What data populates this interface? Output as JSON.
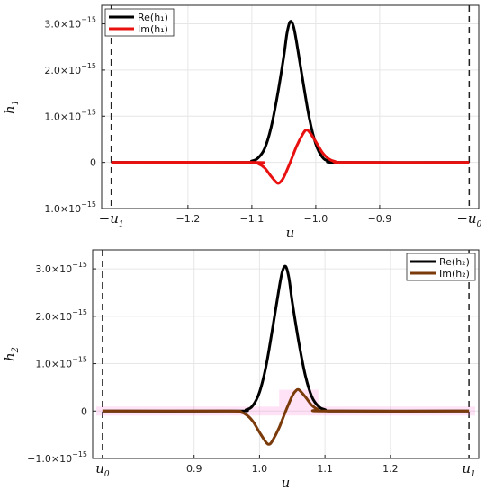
{
  "chart_data": [
    {
      "type": "line",
      "xlabel": "u",
      "ylabel": "h",
      "ylabel_sub": "1",
      "xlim": [
        -1.335,
        -0.745
      ],
      "ylim": [
        -1e-15,
        3.4e-15
      ],
      "grid": true,
      "legend_position": "top-left",
      "x_ticks": [
        {
          "value": -1.2,
          "label": "−1.2"
        },
        {
          "value": -1.1,
          "label": "−1.1"
        },
        {
          "value": -1.0,
          "label": "−1.0"
        },
        {
          "value": -0.9,
          "label": "−0.9"
        }
      ],
      "x_special_ticks": [
        {
          "value": -1.32,
          "label": "−u",
          "sub": "1"
        },
        {
          "value": -0.76,
          "label": "−u",
          "sub": "0"
        }
      ],
      "y_ticks": [
        {
          "value": -1e-15,
          "mant": "−1.0×10",
          "exp": "−15"
        },
        {
          "value": 0,
          "mant": "0",
          "exp": ""
        },
        {
          "value": 1e-15,
          "mant": "1.0×10",
          "exp": "−15"
        },
        {
          "value": 2e-15,
          "mant": "2.0×10",
          "exp": "−15"
        },
        {
          "value": 3e-15,
          "mant": "3.0×10",
          "exp": "−15"
        }
      ],
      "vlines": [
        -1.32,
        -0.76
      ],
      "series": [
        {
          "name": "Re(h₁)",
          "color": "#000000",
          "x": [
            -1.32,
            -1.12,
            -1.1,
            -1.09,
            -1.08,
            -1.07,
            -1.06,
            -1.05,
            -1.045,
            -1.04,
            -1.035,
            -1.03,
            -1.02,
            -1.01,
            -1.0,
            -0.99,
            -0.98,
            -0.96,
            -0.76
          ],
          "y": [
            0,
            0,
            3e-17,
            1e-16,
            3e-16,
            7.5e-16,
            1.45e-15,
            2.3e-15,
            2.8e-15,
            3.05e-15,
            2.95e-15,
            2.6e-15,
            1.75e-15,
            9.5e-16,
            4e-16,
            1.2e-16,
            3e-17,
            0,
            0
          ]
        },
        {
          "name": "Im(h₁)",
          "color": "#e8110f",
          "x": [
            -1.32,
            -1.1,
            -1.09,
            -1.08,
            -1.07,
            -1.06,
            -1.055,
            -1.05,
            -1.04,
            -1.03,
            -1.02,
            -1.015,
            -1.01,
            -1.0,
            -0.99,
            -0.98,
            -0.97,
            -0.95,
            -0.76
          ],
          "y": [
            0,
            0,
            -3e-17,
            -1.2e-16,
            -3e-16,
            -4.5e-16,
            -4.2e-16,
            -3.2e-16,
            0.0,
            3.5e-16,
            6.2e-16,
            7e-16,
            6.6e-16,
            4.5e-16,
            2.2e-16,
            8e-17,
            2e-17,
            0,
            0
          ]
        }
      ]
    },
    {
      "type": "line",
      "xlabel": "u",
      "ylabel": "h",
      "ylabel_sub": "2",
      "xlim": [
        0.745,
        1.335
      ],
      "ylim": [
        -1e-15,
        3.4e-15
      ],
      "grid": true,
      "legend_position": "top-right",
      "x_ticks": [
        {
          "value": 0.9,
          "label": "0.9"
        },
        {
          "value": 1.0,
          "label": "1.0"
        },
        {
          "value": 1.1,
          "label": "1.1"
        },
        {
          "value": 1.2,
          "label": "1.2"
        }
      ],
      "x_special_ticks": [
        {
          "value": 0.76,
          "label": "u",
          "sub": "0"
        },
        {
          "value": 1.32,
          "label": "u",
          "sub": "1"
        }
      ],
      "y_ticks": [
        {
          "value": -1e-15,
          "mant": "−1.0×10",
          "exp": "−15"
        },
        {
          "value": 0,
          "mant": "0",
          "exp": ""
        },
        {
          "value": 1e-15,
          "mant": "1.0×10",
          "exp": "−15"
        },
        {
          "value": 2e-15,
          "mant": "2.0×10",
          "exp": "−15"
        },
        {
          "value": 3e-15,
          "mant": "3.0×10",
          "exp": "−15"
        }
      ],
      "vlines": [
        0.76,
        1.32
      ],
      "series": [
        {
          "name": "Re(h₂)",
          "color": "#000000",
          "x": [
            0.76,
            0.96,
            0.98,
            0.99,
            1.0,
            1.01,
            1.02,
            1.03,
            1.035,
            1.04,
            1.045,
            1.05,
            1.06,
            1.07,
            1.08,
            1.09,
            1.1,
            1.12,
            1.32
          ],
          "y": [
            0,
            0,
            3e-17,
            1.2e-16,
            4e-16,
            9.5e-16,
            1.75e-15,
            2.6e-15,
            2.95e-15,
            3.05e-15,
            2.8e-15,
            2.3e-15,
            1.45e-15,
            7.5e-16,
            3e-16,
            1e-16,
            3e-17,
            0,
            0
          ]
        },
        {
          "name": "Im(h₂)",
          "color": "#7a3a0a",
          "x": [
            0.76,
            0.95,
            0.97,
            0.98,
            0.99,
            1.0,
            1.01,
            1.015,
            1.02,
            1.03,
            1.04,
            1.05,
            1.055,
            1.06,
            1.07,
            1.08,
            1.09,
            1.1,
            1.32
          ],
          "y": [
            0,
            0,
            -2e-17,
            -8e-17,
            -2.2e-16,
            -4.5e-16,
            -6.6e-16,
            -7e-16,
            -6.2e-16,
            -3.5e-16,
            0.0,
            3.2e-16,
            4.2e-16,
            4.5e-16,
            3e-16,
            1.2e-16,
            3e-17,
            0,
            0
          ]
        }
      ]
    }
  ]
}
